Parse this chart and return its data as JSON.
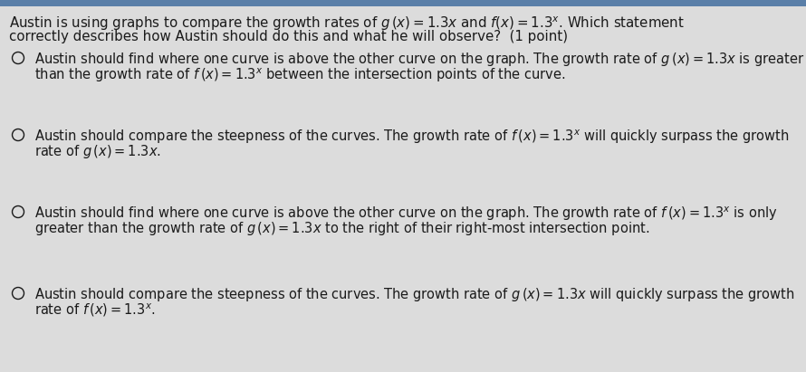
{
  "bg_color": "#dcdcdc",
  "content_bg": "#f0f0f0",
  "text_color": "#1a1a1a",
  "top_bar_color": "#5a7fa8",
  "title_line1": "Austin is using graphs to compare the growth rates of $g\\,(x)=1.3x$ and $f(x)=1.3^{x}$. Which statement",
  "title_line2": "correctly describes how Austin should do this and what he will observe?  (1 point)",
  "options": [
    {
      "line1": "Austin should find where one curve is above the other curve on the graph. The growth rate of $g\\,(x)=1.3x$ is greater",
      "line2": "than the growth rate of $f\\,(x)=1.3^{x}$ between the intersection points of the curve."
    },
    {
      "line1": "Austin should compare the steepness of the curves. The growth rate of $f\\,(x)=1.3^{x}$ will quickly surpass the growth",
      "line2": "rate of $g\\,(x)=1.3x$."
    },
    {
      "line1": "Austin should find where one curve is above the other curve on the graph. The growth rate of $f\\,(x)=1.3^{x}$ is only",
      "line2": "greater than the growth rate of $g\\,(x)=1.3x$ to the right of their right-most intersection point."
    },
    {
      "line1": "Austin should compare the steepness of the curves. The growth rate of $g\\,(x)=1.3x$ will quickly surpass the growth",
      "line2": "rate of $f\\,(x)=1.3^{x}$."
    }
  ],
  "circle_color": "#1a1a1a",
  "font_size_title": 10.8,
  "font_size_option": 10.5,
  "figsize": [
    8.9,
    4.11
  ],
  "dpi": 100
}
